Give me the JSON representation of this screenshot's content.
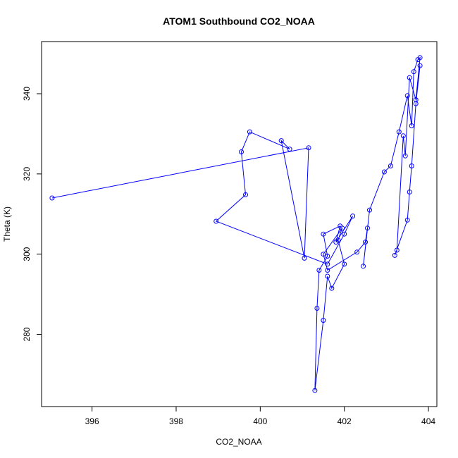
{
  "chart_data": {
    "type": "line",
    "title": "ATOM1 Southbound CO2_NOAA",
    "xlabel": "CO2_NOAA",
    "ylabel": "Theta (K)",
    "xlim": [
      394.8,
      404.2
    ],
    "ylim": [
      262,
      353
    ],
    "xticks": [
      396,
      398,
      400,
      402,
      404
    ],
    "yticks": [
      280,
      300,
      320,
      340
    ],
    "line_color": "#0000ff",
    "marker": "open-circle",
    "grid": false,
    "legend": "none",
    "series": [
      {
        "x": [
          395.05,
          401.15,
          401.05,
          400.5,
          400.7,
          399.75,
          399.55,
          399.65,
          398.95,
          401.6,
          402.0,
          402.2,
          401.8,
          401.9,
          401.5,
          401.6,
          401.4,
          401.35,
          401.3,
          401.5,
          401.6,
          401.7,
          402.0,
          401.85,
          401.95,
          401.5,
          401.6,
          402.3,
          402.5,
          402.55,
          402.45,
          402.6,
          402.95,
          403.1,
          403.3,
          403.5,
          403.6,
          403.65,
          403.75,
          403.8,
          403.7,
          403.55,
          403.45,
          403.4,
          403.25,
          403.2,
          403.5,
          403.55,
          403.6,
          403.7,
          403.8
        ],
        "y": [
          314,
          326.5,
          299,
          328.3,
          326.2,
          330.5,
          325.5,
          314.8,
          308.2,
          297.5,
          305,
          309.5,
          303,
          307,
          305,
          299.5,
          296,
          286.5,
          266,
          283.5,
          294.5,
          291.5,
          297.5,
          303.5,
          306.5,
          300,
          296,
          300.5,
          303,
          306.5,
          297,
          311,
          320.5,
          322,
          330.5,
          339.5,
          332,
          345.5,
          348.5,
          349,
          338.5,
          344,
          324.5,
          329.5,
          301,
          299.7,
          308.5,
          315.5,
          322,
          337.5,
          347
        ]
      }
    ]
  }
}
